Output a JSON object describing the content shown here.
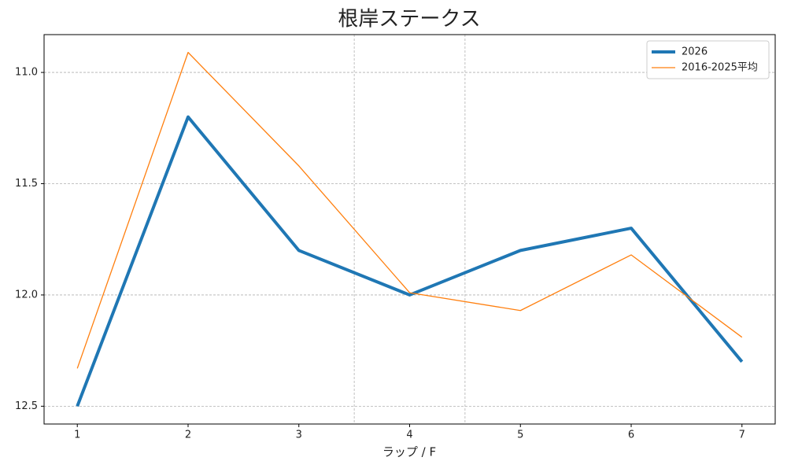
{
  "chart_data": {
    "type": "line",
    "title": "根岸ステークス",
    "x_label": "ラップ / F",
    "x": [
      1,
      2,
      3,
      4,
      5,
      6,
      7
    ],
    "series": [
      {
        "name": "2026",
        "color": "#1f77b4",
        "line_width": 4,
        "values": [
          12.5,
          11.2,
          11.8,
          12.0,
          11.8,
          11.7,
          12.3
        ]
      },
      {
        "name": "2016-2025平均",
        "color": "#ff7f0e",
        "line_width": 1.3,
        "values": [
          12.33,
          10.91,
          11.42,
          11.99,
          12.07,
          11.82,
          12.19
        ]
      }
    ],
    "xlim": [
      0.7,
      7.3
    ],
    "xticks": [
      1,
      2,
      3,
      4,
      5,
      6,
      7
    ],
    "ylim": [
      12.58,
      10.83
    ],
    "yticks": [
      {
        "value": 11,
        "label": "11.0"
      },
      11.5,
      {
        "value": 12,
        "label": "12.0"
      },
      12.5
    ],
    "vlines": [
      3.5,
      4.5
    ],
    "grid": true,
    "legend": "upper-right"
  }
}
